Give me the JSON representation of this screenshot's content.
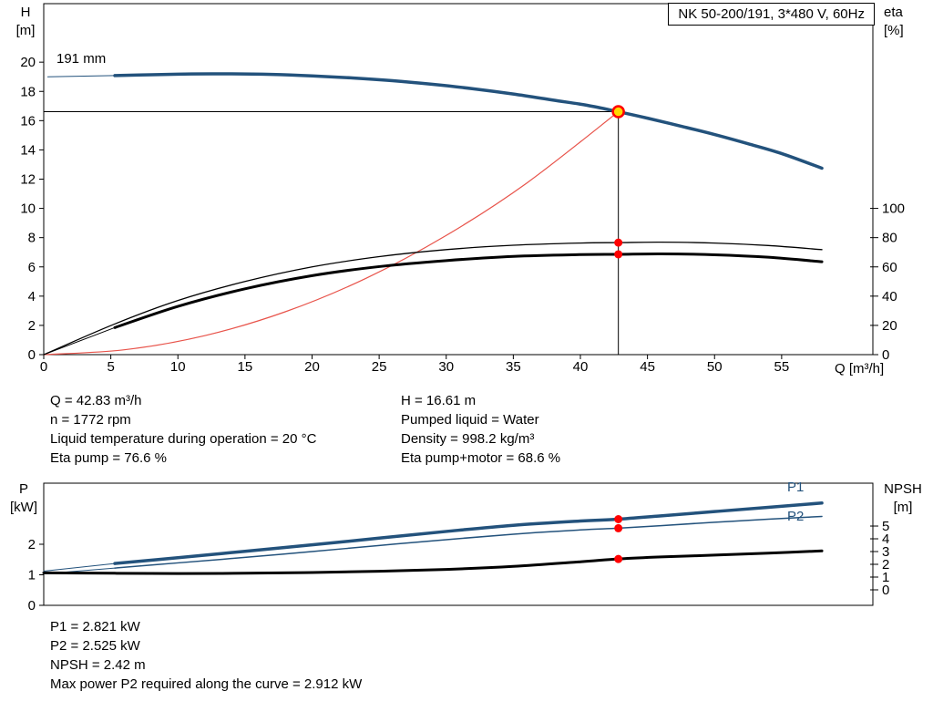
{
  "title_box": "NK 50-200/191, 3*480 V, 60Hz",
  "top_chart": {
    "y_left_unit_line1": "H",
    "y_left_unit_line2": "[m]",
    "y_right_unit_line1": "eta",
    "y_right_unit_line2": "[%]",
    "x_unit": "Q [m³/h]",
    "impeller_label": "191 mm"
  },
  "bottom_chart": {
    "y_left_unit_line1": "P",
    "y_left_unit_line2": "[kW]",
    "y_right_unit_line1": "NPSH",
    "y_right_unit_line2": "[m]",
    "p1_label": "P1",
    "p2_label": "P2"
  },
  "info_left": [
    "Q = 42.83 m³/h",
    "n = 1772 rpm",
    "Liquid temperature during operation = 20 °C",
    "Eta pump = 76.6 %"
  ],
  "info_right": [
    "H = 16.61 m",
    "Pumped liquid = Water",
    "Density = 998.2 kg/m³",
    "Eta pump+motor = 68.6 %"
  ],
  "results": [
    "P1 = 2.821 kW",
    "P2 = 2.525 kW",
    "NPSH = 2.42 m",
    "Max power P2 required along the curve = 2.912 kW"
  ],
  "colors": {
    "curve_blue": "#23527c",
    "system_red": "#e8534a",
    "marker_red": "#ff0000",
    "duty_yellow": "#ffd800",
    "black": "#000000"
  },
  "chart_data": [
    {
      "type": "line",
      "title": "NK 50-200/191, 3*480 V, 60Hz",
      "xlabel": "Q [m³/h]",
      "ylabel_left": "H [m]",
      "ylabel_right": "eta [%]",
      "xlim": [
        0,
        61.8
      ],
      "x_ticks": [
        0,
        5,
        10,
        15,
        20,
        25,
        30,
        35,
        40,
        45,
        50,
        55
      ],
      "ylim_left": [
        0,
        24
      ],
      "y_ticks_left": [
        0,
        2,
        4,
        6,
        8,
        10,
        12,
        14,
        16,
        18,
        20
      ],
      "ylim_right": [
        0,
        240
      ],
      "y_ticks_right": [
        0,
        20,
        40,
        60,
        80,
        100
      ],
      "duty_point": {
        "Q": 42.83,
        "H": 16.61
      },
      "series": [
        {
          "name": "impeller-trim-line",
          "axis": "left",
          "color": "#23527c",
          "width": 1,
          "x": [
            0.3,
            5.3
          ],
          "y": [
            19.0,
            19.08
          ]
        },
        {
          "name": "head-curve-191mm",
          "axis": "left",
          "color": "#23527c",
          "width": 3.5,
          "x": [
            5.3,
            8,
            11,
            14,
            17,
            20,
            23,
            26,
            29,
            32,
            35,
            38,
            40.5,
            42.83,
            45,
            47.5,
            50,
            52.5,
            55,
            58
          ],
          "y": [
            19.08,
            19.14,
            19.19,
            19.2,
            19.16,
            19.06,
            18.92,
            18.73,
            18.48,
            18.18,
            17.82,
            17.4,
            17.05,
            16.61,
            16.17,
            15.62,
            15.05,
            14.42,
            13.75,
            12.75
          ]
        },
        {
          "name": "system-curve",
          "axis": "left",
          "color": "#e8534a",
          "width": 1.2,
          "x": [
            0,
            6,
            12,
            18,
            24,
            30,
            36,
            42.83
          ],
          "y": [
            0,
            0.33,
            1.3,
            2.93,
            5.21,
            8.15,
            11.73,
            16.61
          ]
        },
        {
          "name": "eta-pump-curve",
          "axis": "right",
          "color": "#000000",
          "width": 1.3,
          "x": [
            0,
            5.3,
            10,
            15,
            20,
            25,
            30,
            35,
            40,
            42.83,
            46,
            50,
            54,
            58
          ],
          "y": [
            0,
            21,
            37,
            50,
            60,
            67,
            71.8,
            74.8,
            76.3,
            76.6,
            76.9,
            76.3,
            74.6,
            71.8
          ]
        },
        {
          "name": "eta-pump-motor-leadin",
          "axis": "right",
          "color": "#000000",
          "width": 1,
          "x": [
            0,
            5.3
          ],
          "y": [
            0,
            18.5
          ]
        },
        {
          "name": "eta-pump-motor-curve",
          "axis": "right",
          "color": "#000000",
          "width": 3,
          "x": [
            5.3,
            10,
            15,
            20,
            25,
            30,
            35,
            40,
            42.83,
            46,
            50,
            54,
            58
          ],
          "y": [
            18.5,
            33,
            45,
            54,
            60.2,
            64.3,
            67.2,
            68.4,
            68.6,
            68.9,
            68.3,
            66.6,
            63.5
          ]
        }
      ],
      "markers": [
        {
          "name": "eta-pump-point",
          "axis": "right",
          "x": 42.83,
          "y": 76.6,
          "r": 4.5,
          "fill": "#ff0000"
        },
        {
          "name": "eta-pump-motor-point",
          "axis": "right",
          "x": 42.83,
          "y": 68.6,
          "r": 4.5,
          "fill": "#ff0000"
        },
        {
          "name": "duty-point",
          "axis": "left",
          "x": 42.83,
          "y": 16.61,
          "r": 6,
          "fill": "#ffd800",
          "stroke": "#ff0000",
          "stroke_width": 2.5
        }
      ]
    },
    {
      "type": "line",
      "title": "",
      "xlabel": "",
      "ylabel_left": "P [kW]",
      "ylabel_right": "NPSH [m]",
      "xlim": [
        0,
        61.8
      ],
      "x_ticks": [],
      "ylim_left": [
        0,
        4
      ],
      "y_ticks_left": [
        0,
        1,
        2
      ],
      "ylim_right": [
        0,
        8.36
      ],
      "y_ticks_right": [
        0,
        1,
        2,
        3,
        4,
        5
      ],
      "series": [
        {
          "name": "p1-leadin",
          "axis": "left",
          "color": "#23527c",
          "width": 1,
          "x": [
            0,
            5.3
          ],
          "y": [
            1.12,
            1.37
          ]
        },
        {
          "name": "p1-curve",
          "axis": "left",
          "color": "#23527c",
          "width": 3.5,
          "x": [
            5.3,
            10,
            15,
            20,
            25,
            30,
            35,
            40,
            42.83,
            46,
            50,
            54,
            58
          ],
          "y": [
            1.37,
            1.56,
            1.77,
            1.98,
            2.2,
            2.42,
            2.62,
            2.76,
            2.821,
            2.93,
            3.07,
            3.21,
            3.35
          ]
        },
        {
          "name": "p2-leadin",
          "axis": "left",
          "color": "#23527c",
          "width": 1,
          "x": [
            0,
            5.3
          ],
          "y": [
            1.03,
            1.22
          ]
        },
        {
          "name": "p2-curve",
          "axis": "left",
          "color": "#23527c",
          "width": 1.5,
          "x": [
            5.3,
            10,
            15,
            20,
            25,
            30,
            35,
            40,
            42.83,
            46,
            50,
            54,
            58
          ],
          "y": [
            1.22,
            1.39,
            1.57,
            1.76,
            1.96,
            2.15,
            2.33,
            2.47,
            2.525,
            2.61,
            2.72,
            2.82,
            2.91
          ]
        },
        {
          "name": "npsh-curve",
          "axis": "right",
          "color": "#000000",
          "width": 3,
          "x": [
            0,
            5.3,
            10,
            15,
            20,
            25,
            30,
            35,
            40,
            42.83,
            46,
            50,
            54,
            58
          ],
          "y": [
            1.33,
            1.3,
            1.28,
            1.3,
            1.36,
            1.46,
            1.6,
            1.84,
            2.2,
            2.42,
            2.58,
            2.72,
            2.88,
            3.05
          ]
        }
      ],
      "markers": [
        {
          "name": "p1-point",
          "axis": "left",
          "x": 42.83,
          "y": 2.821,
          "r": 4.5,
          "fill": "#ff0000"
        },
        {
          "name": "p2-point",
          "axis": "left",
          "x": 42.83,
          "y": 2.525,
          "r": 4.5,
          "fill": "#ff0000"
        },
        {
          "name": "npsh-point",
          "axis": "right",
          "x": 42.83,
          "y": 2.42,
          "r": 4.5,
          "fill": "#ff0000"
        }
      ]
    }
  ]
}
